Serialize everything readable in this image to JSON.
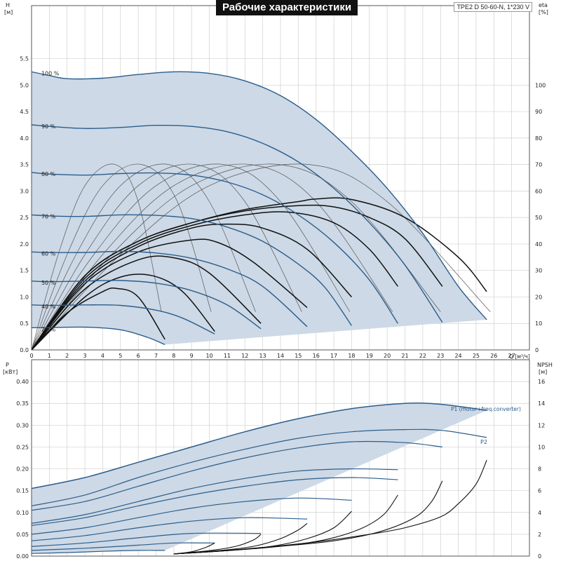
{
  "title": "Рабочие характеристики",
  "model": "TPE2 D 50-60-N, 1*230 V",
  "colors": {
    "band": "#cdd9e6",
    "pump_curve": "#2b5d8c",
    "eff_curve": "#111111",
    "grid": "#d0d0d0"
  },
  "chart_data": [
    {
      "type": "line",
      "title": "Рабочие характеристики",
      "xlabel": "Q [м³/ч]",
      "ylabel": "H [м]",
      "ylabel_right": "eta [%]",
      "xlim": [
        0,
        28
      ],
      "ylim": [
        0,
        6.5
      ],
      "y2lim": [
        0,
        130
      ],
      "xticks": [
        0,
        1,
        2,
        3,
        4,
        5,
        6,
        7,
        8,
        9,
        10,
        11,
        12,
        13,
        14,
        15,
        16,
        17,
        18,
        19,
        20,
        21,
        22,
        23,
        24,
        25,
        26,
        27
      ],
      "yticks": [
        0.0,
        0.5,
        1.0,
        1.5,
        2.0,
        2.5,
        3.0,
        3.5,
        4.0,
        4.5,
        5.0,
        5.5
      ],
      "y2ticks": [
        0,
        10,
        20,
        30,
        40,
        50,
        60,
        70,
        80,
        90,
        100
      ],
      "grid": true,
      "speed_labels": [
        "100 %",
        "90 %",
        "80 %",
        "70 %",
        "60 %",
        "50 %",
        "40 %",
        "29 %"
      ],
      "series": [
        {
          "name": "100 %",
          "x": [
            0,
            1,
            2,
            4,
            6,
            8,
            10,
            12,
            14,
            16,
            18,
            20,
            22,
            24,
            25.6
          ],
          "y": [
            5.25,
            5.18,
            5.12,
            5.13,
            5.2,
            5.25,
            5.22,
            5.08,
            4.8,
            4.35,
            3.75,
            3.05,
            2.2,
            1.2,
            0.57
          ]
        },
        {
          "name": "90 %",
          "x": [
            0,
            1,
            3,
            5,
            7,
            9,
            11,
            13,
            15,
            17,
            19,
            21,
            23.1
          ],
          "y": [
            4.25,
            4.22,
            4.18,
            4.2,
            4.24,
            4.22,
            4.12,
            3.9,
            3.55,
            3.05,
            2.4,
            1.6,
            0.52
          ]
        },
        {
          "name": "80 %",
          "x": [
            0,
            1,
            3,
            5,
            7,
            9,
            11,
            13,
            15,
            17,
            19,
            20.6
          ],
          "y": [
            3.35,
            3.32,
            3.3,
            3.33,
            3.34,
            3.3,
            3.17,
            2.93,
            2.55,
            2.03,
            1.32,
            0.5
          ]
        },
        {
          "name": "70 %",
          "x": [
            0,
            1,
            3,
            5,
            7,
            9,
            11,
            13,
            15,
            16.5,
            18
          ],
          "y": [
            2.55,
            2.53,
            2.52,
            2.55,
            2.54,
            2.48,
            2.32,
            2.05,
            1.62,
            1.18,
            0.46
          ]
        },
        {
          "name": "60 %",
          "x": [
            0,
            1,
            3,
            5,
            7,
            9,
            11,
            13,
            15.5
          ],
          "y": [
            1.85,
            1.84,
            1.84,
            1.86,
            1.83,
            1.73,
            1.53,
            1.2,
            0.44
          ]
        },
        {
          "name": "50 %",
          "x": [
            0,
            1,
            3,
            5,
            7,
            9,
            11,
            12.9
          ],
          "y": [
            1.3,
            1.29,
            1.3,
            1.31,
            1.26,
            1.12,
            0.85,
            0.4
          ]
        },
        {
          "name": "40 %",
          "x": [
            0,
            1,
            3,
            5,
            7,
            8.5,
            10.3
          ],
          "y": [
            0.85,
            0.84,
            0.85,
            0.84,
            0.75,
            0.6,
            0.3
          ]
        },
        {
          "name": "29 %",
          "x": [
            0,
            1,
            3,
            5,
            6.5,
            7.5
          ],
          "y": [
            0.42,
            0.42,
            0.43,
            0.38,
            0.24,
            0.1
          ]
        }
      ],
      "eta_series": [
        {
          "speed": "100 %",
          "x": [
            0,
            3,
            6,
            9,
            12,
            15,
            16,
            18,
            21,
            24,
            25.6
          ],
          "y": [
            0,
            28,
            41,
            48,
            53,
            56,
            57,
            56.8,
            50,
            35,
            22
          ]
        },
        {
          "speed": "90 %",
          "x": [
            0,
            3,
            6,
            9,
            12,
            15,
            17,
            19,
            21,
            23.1
          ],
          "y": [
            0,
            28,
            41,
            48,
            52.5,
            54.5,
            54,
            50,
            42,
            24
          ]
        },
        {
          "speed": "80 %",
          "x": [
            0,
            3,
            6,
            9,
            12,
            14.5,
            17,
            19,
            20.6
          ],
          "y": [
            0,
            27,
            40,
            47,
            51,
            52,
            48,
            38,
            24
          ]
        },
        {
          "speed": "70 %",
          "x": [
            0,
            3,
            6,
            9,
            11,
            13,
            15.5,
            18
          ],
          "y": [
            0,
            26,
            39,
            46,
            47.5,
            46,
            38,
            20
          ]
        },
        {
          "speed": "60 %",
          "x": [
            0,
            3,
            6,
            9,
            10.5,
            12.5,
            15.5
          ],
          "y": [
            0,
            25,
            37,
            41.5,
            40.5,
            33,
            16
          ]
        },
        {
          "speed": "50 %",
          "x": [
            0,
            3,
            6,
            8,
            10,
            12.9
          ],
          "y": [
            0,
            23,
            34,
            34.8,
            29,
            10
          ]
        },
        {
          "speed": "40 %",
          "x": [
            0,
            3,
            5,
            6.8,
            8.5,
            10.3
          ],
          "y": [
            0,
            20,
            27.5,
            28,
            22,
            7
          ]
        },
        {
          "speed": "29 %",
          "x": [
            0,
            2,
            4,
            4.8,
            6,
            7.5
          ],
          "y": [
            0,
            14,
            22,
            23.2,
            20,
            4
          ]
        }
      ],
      "iso_eta_series": [
        {
          "x": [
            0,
            1.5,
            3,
            4.7,
            6,
            7.3
          ],
          "y": [
            0,
            1.8,
            3.1,
            3.5,
            2.8,
            0.72
          ]
        },
        {
          "x": [
            0,
            2,
            4,
            6.2,
            8.2,
            10.1
          ],
          "y": [
            0,
            1.8,
            3.1,
            3.5,
            2.8,
            0.72
          ]
        },
        {
          "x": [
            0,
            2.5,
            5,
            7.7,
            10,
            12.6
          ],
          "y": [
            0,
            1.8,
            3.1,
            3.5,
            2.8,
            0.72
          ]
        },
        {
          "x": [
            0,
            3,
            6,
            9.2,
            12,
            15.2
          ],
          "y": [
            0,
            1.8,
            3.1,
            3.5,
            2.8,
            0.72
          ]
        },
        {
          "x": [
            0,
            3.5,
            7,
            10.8,
            14,
            17.9
          ],
          "y": [
            0,
            1.8,
            3.1,
            3.5,
            2.8,
            0.72
          ]
        },
        {
          "x": [
            0,
            4,
            8,
            12.3,
            16,
            20.3
          ],
          "y": [
            0,
            1.8,
            3.1,
            3.5,
            2.8,
            0.72
          ]
        },
        {
          "x": [
            0,
            4.5,
            9,
            13.9,
            18,
            23.0
          ],
          "y": [
            0,
            1.8,
            3.1,
            3.5,
            2.8,
            0.72
          ]
        },
        {
          "x": [
            0,
            5,
            10,
            15.6,
            20,
            25.8
          ],
          "y": [
            0,
            1.8,
            3.1,
            3.5,
            2.8,
            0.72
          ]
        }
      ]
    },
    {
      "type": "line",
      "ylabel": "P [кВт]",
      "ylabel_right": "NPSH [м]",
      "xlim": [
        0,
        28
      ],
      "ylim": [
        0,
        0.45
      ],
      "y2lim": [
        0,
        18
      ],
      "yticks": [
        0.0,
        0.05,
        0.1,
        0.15,
        0.2,
        0.25,
        0.3,
        0.35,
        0.4
      ],
      "y2ticks": [
        0,
        2,
        4,
        6,
        8,
        10,
        12,
        14,
        16
      ],
      "grid": true,
      "annotations": [
        "P1 (motor+freq.converter)",
        "P2"
      ],
      "series": [
        {
          "name": "P1 (motor+freq.converter)",
          "x": [
            0,
            3,
            6,
            9,
            12,
            15,
            18,
            21,
            23,
            25.6
          ],
          "y": [
            0.155,
            0.18,
            0.215,
            0.25,
            0.285,
            0.315,
            0.338,
            0.35,
            0.348,
            0.334
          ]
        },
        {
          "name": "P2",
          "x": [
            0,
            3,
            6,
            9,
            12,
            15,
            18,
            21,
            23.1,
            25.6
          ],
          "y": [
            0.115,
            0.14,
            0.18,
            0.215,
            0.245,
            0.27,
            0.285,
            0.29,
            0.288,
            0.272
          ]
        },
        {
          "x": [
            0,
            3,
            6,
            9,
            12,
            15,
            18,
            21,
            23.1
          ],
          "y": [
            0.105,
            0.125,
            0.16,
            0.195,
            0.225,
            0.248,
            0.262,
            0.26,
            0.25
          ]
        },
        {
          "x": [
            0,
            3,
            6,
            9,
            12,
            15,
            18,
            20.6
          ],
          "y": [
            0.075,
            0.095,
            0.125,
            0.155,
            0.178,
            0.195,
            0.2,
            0.198
          ]
        },
        {
          "x": [
            0,
            3,
            6,
            9,
            12,
            15,
            18,
            20.6
          ],
          "y": [
            0.07,
            0.088,
            0.115,
            0.14,
            0.16,
            0.175,
            0.18,
            0.175
          ]
        },
        {
          "x": [
            0,
            3,
            6,
            9,
            12,
            15,
            18
          ],
          "y": [
            0.05,
            0.065,
            0.088,
            0.11,
            0.125,
            0.133,
            0.128
          ]
        },
        {
          "x": [
            0,
            3,
            6,
            9,
            12,
            15.5
          ],
          "y": [
            0.035,
            0.047,
            0.065,
            0.08,
            0.088,
            0.085
          ]
        },
        {
          "x": [
            0,
            3,
            6,
            9,
            12.9
          ],
          "y": [
            0.022,
            0.03,
            0.042,
            0.052,
            0.052
          ]
        },
        {
          "x": [
            0,
            3,
            6,
            8,
            10.3
          ],
          "y": [
            0.013,
            0.018,
            0.025,
            0.03,
            0.03
          ]
        },
        {
          "x": [
            0,
            2,
            4,
            6,
            7.5
          ],
          "y": [
            0.006,
            0.008,
            0.011,
            0.013,
            0.013
          ]
        }
      ],
      "npsh_series": [
        {
          "x": [
            8,
            10,
            13,
            16,
            19,
            21,
            23,
            24,
            25,
            25.6
          ],
          "y": [
            0.2,
            0.4,
            0.8,
            1.3,
            2.0,
            2.6,
            3.6,
            4.8,
            6.6,
            8.8
          ]
        },
        {
          "x": [
            8,
            11,
            14,
            17,
            19.5,
            21.5,
            22.5,
            23.1
          ],
          "y": [
            0.2,
            0.5,
            0.9,
            1.4,
            2.2,
            3.5,
            5,
            6.9
          ]
        },
        {
          "x": [
            8,
            11,
            14,
            16.5,
            18.5,
            19.8,
            20.6
          ],
          "y": [
            0.2,
            0.5,
            0.9,
            1.5,
            2.5,
            3.8,
            5.6
          ]
        },
        {
          "x": [
            8,
            11,
            13.5,
            15.5,
            17,
            18
          ],
          "y": [
            0.2,
            0.5,
            0.9,
            1.6,
            2.6,
            4.1
          ]
        },
        {
          "x": [
            8,
            10.5,
            12.5,
            14,
            15,
            15.5
          ],
          "y": [
            0.2,
            0.5,
            0.9,
            1.6,
            2.4,
            3.0
          ]
        },
        {
          "x": [
            8,
            10,
            11.5,
            12.5,
            12.9
          ],
          "y": [
            0.2,
            0.5,
            0.9,
            1.5,
            2.0
          ]
        },
        {
          "x": [
            8,
            9,
            9.8,
            10.3
          ],
          "y": [
            0.2,
            0.4,
            0.8,
            1.2
          ]
        }
      ]
    }
  ]
}
